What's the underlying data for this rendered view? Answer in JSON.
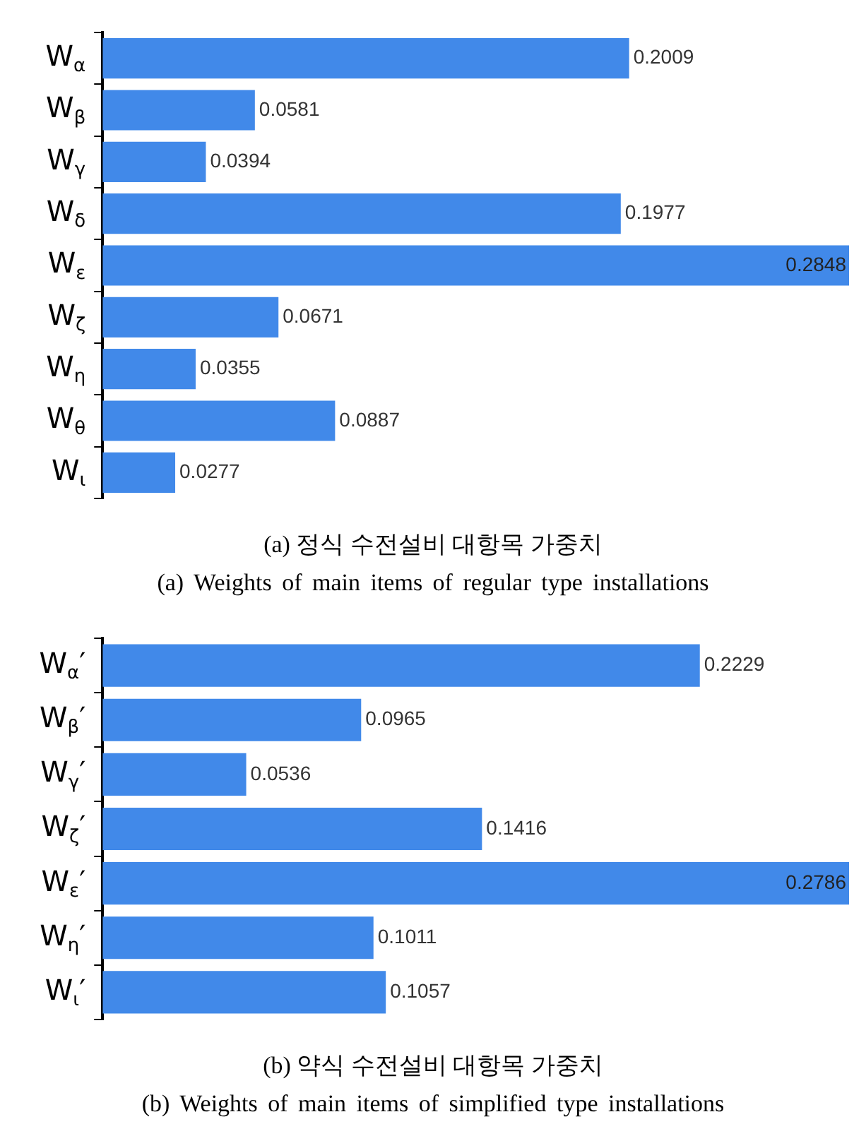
{
  "chart_data": [
    {
      "type": "bar",
      "orientation": "horizontal",
      "title": "(a) 정식 수전설비 대항목 가중치",
      "subtitle": "(a) Weights of main items of regular type installations",
      "categories": [
        "W$_{α}$",
        "W$_{β}$",
        "W$_{γ}$",
        "W$_{δ}$",
        "W$_{ε}$",
        "W$_{ζ}$",
        "W$_{η}$",
        "W$_{θ}$",
        "W$_{ι}$"
      ],
      "values": [
        0.2009,
        0.0581,
        0.0394,
        0.1977,
        0.2848,
        0.0671,
        0.0355,
        0.0887,
        0.0277
      ],
      "color": "#4189e9",
      "data_labels": true
    },
    {
      "type": "bar",
      "orientation": "horizontal",
      "title": "(b) 약식 수전설비 대항목 가중치",
      "subtitle": "(b) Weights of main items of simplified type installations",
      "categories": [
        "W$_{α}$′",
        "W$_{β}$′",
        "W$_{γ}$′",
        "W$_{ζ}$′",
        "W$_{ε}$′",
        "W$_{η}$′",
        "W$_{ι}$′"
      ],
      "values": [
        0.2229,
        0.0965,
        0.0536,
        0.1416,
        0.2786,
        0.1011,
        0.1057
      ],
      "color": "#4189e9",
      "data_labels": true
    }
  ]
}
